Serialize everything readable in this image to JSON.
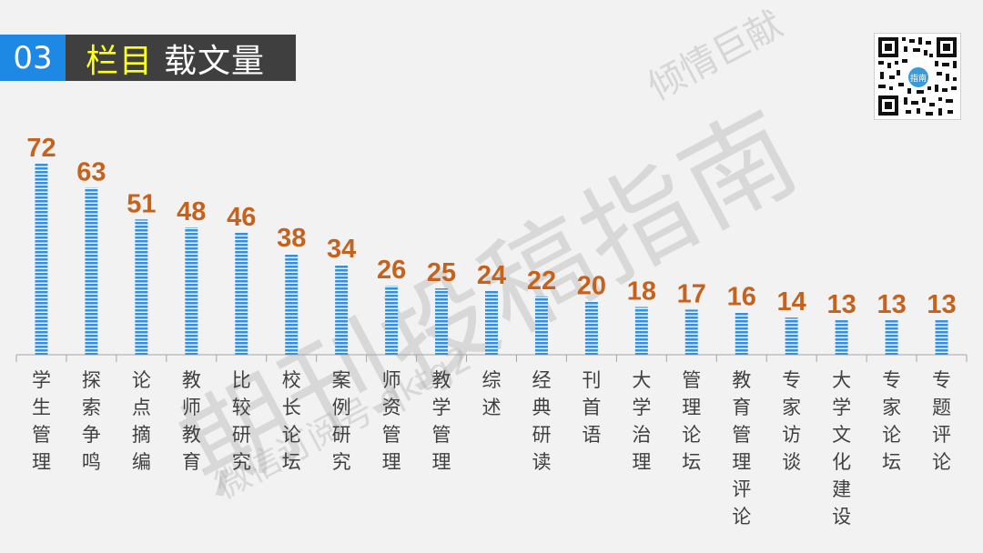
{
  "header": {
    "number": "03",
    "title_highlight": "栏目",
    "title_rest": "载文量"
  },
  "watermarks": {
    "top_right": "倾情巨献",
    "main": "期刊投稿指南",
    "small": "微信订阅号 qktg2"
  },
  "qr": {
    "logo": "指南"
  },
  "colors": {
    "bar": "#3d8ed6",
    "value_label": "#c5621e",
    "header_badge": "#1e88e5",
    "header_box": "#3f3f3f",
    "title_highlight": "#ffff1a"
  },
  "chart_data": {
    "type": "bar",
    "categories": [
      "学生管理",
      "探索争鸣",
      "论点摘编",
      "教师教育",
      "比较研究",
      "校长论坛",
      "案例研究",
      "师资管理",
      "教学管理",
      "综述",
      "经典研读",
      "刊首语",
      "大学治理",
      "管理论坛",
      "教育管理评论",
      "专家访谈",
      "大学文化建设",
      "专家论坛",
      "专题评论"
    ],
    "values": [
      72,
      63,
      51,
      48,
      46,
      38,
      34,
      26,
      25,
      24,
      22,
      20,
      18,
      17,
      16,
      14,
      13,
      13,
      13
    ],
    "title": "栏目 载文量",
    "ylim": [
      0,
      72
    ],
    "grid": false,
    "data_labels": true
  }
}
